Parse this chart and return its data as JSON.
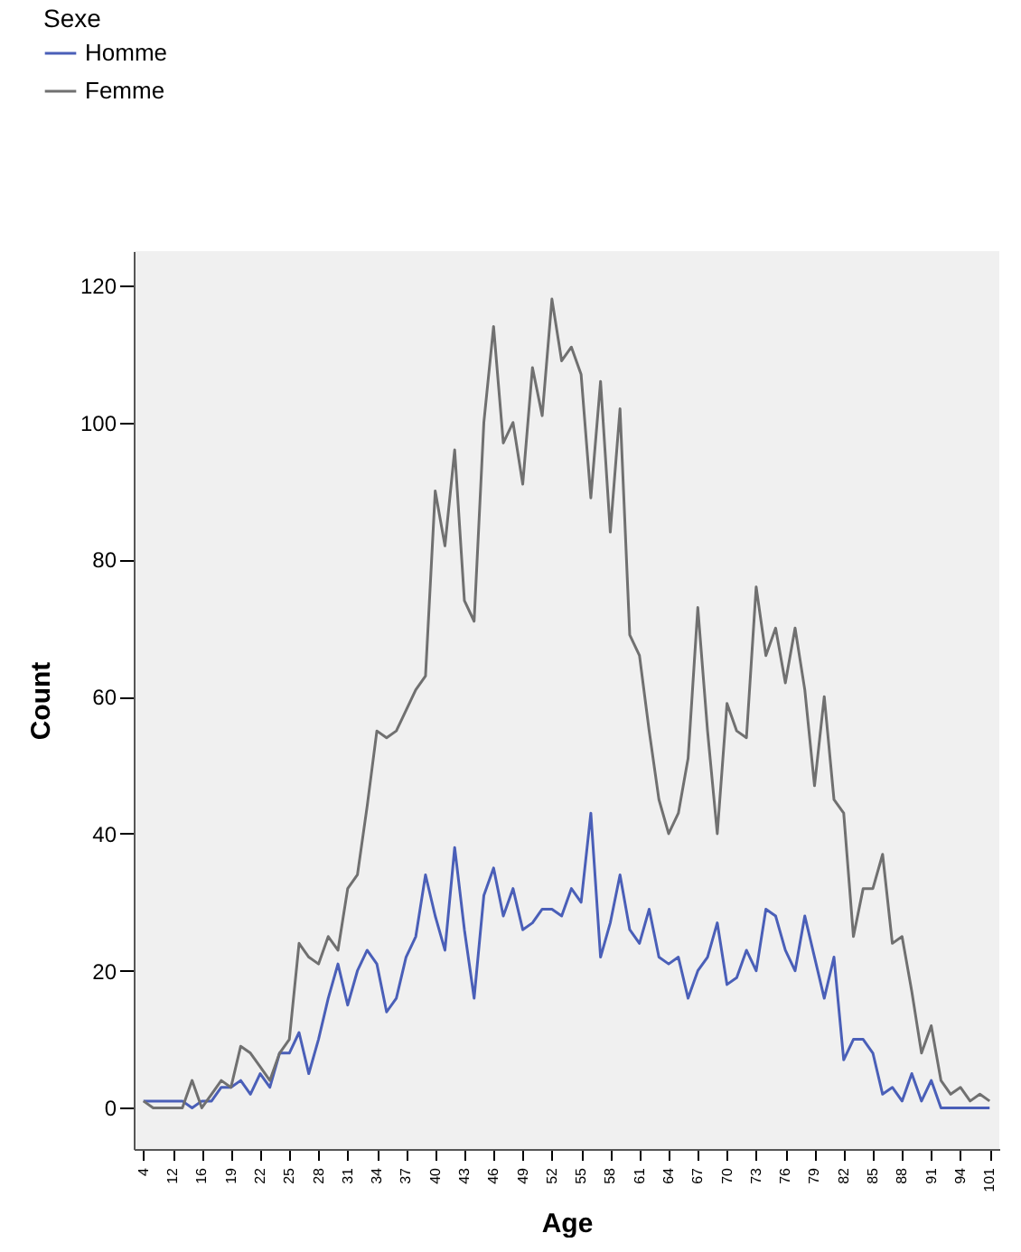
{
  "chart_data": {
    "type": "line",
    "xlabel": "Age",
    "ylabel": "Count",
    "legend_title": "Sexe",
    "legend": "top left",
    "grid": false,
    "categories": [
      "4",
      null,
      null,
      "12",
      null,
      null,
      "16",
      null,
      null,
      "19",
      null,
      null,
      "22",
      null,
      null,
      "25",
      null,
      null,
      "28",
      null,
      null,
      "31",
      null,
      null,
      "34",
      null,
      null,
      "37",
      null,
      null,
      "40",
      null,
      null,
      "43",
      null,
      null,
      "46",
      null,
      null,
      "49",
      null,
      null,
      "52",
      null,
      null,
      "55",
      null,
      null,
      "58",
      null,
      null,
      "61",
      null,
      null,
      "64",
      null,
      null,
      "67",
      null,
      null,
      "70",
      null,
      null,
      "73",
      null,
      null,
      "76",
      null,
      null,
      "79",
      null,
      null,
      "82",
      null,
      null,
      "85",
      null,
      null,
      "88",
      null,
      null,
      "91",
      null,
      null,
      "94",
      null,
      null,
      "101"
    ],
    "ylim": [
      -6,
      125
    ],
    "yticks": [
      0,
      20,
      40,
      60,
      80,
      100,
      120
    ],
    "series": [
      {
        "name": "Homme",
        "color": "#4a5fb8",
        "values": [
          1,
          1,
          1,
          1,
          1,
          0,
          1,
          1,
          3,
          3,
          4,
          2,
          5,
          3,
          8,
          8,
          11,
          5,
          10,
          16,
          21,
          15,
          20,
          23,
          21,
          14,
          16,
          22,
          25,
          34,
          28,
          23,
          38,
          26,
          16,
          31,
          35,
          28,
          32,
          26,
          27,
          29,
          29,
          28,
          32,
          30,
          43,
          22,
          27,
          34,
          26,
          24,
          29,
          22,
          21,
          22,
          16,
          20,
          22,
          27,
          18,
          19,
          23,
          20,
          29,
          28,
          23,
          20,
          28,
          22,
          16,
          22,
          7,
          10,
          10,
          8,
          2,
          3,
          1,
          5,
          1,
          4,
          0,
          0,
          0,
          0,
          0,
          0
        ]
      },
      {
        "name": "Femme",
        "color": "#707070",
        "values": [
          1,
          0,
          0,
          0,
          0,
          4,
          0,
          2,
          4,
          3,
          9,
          8,
          6,
          4,
          8,
          10,
          24,
          22,
          21,
          25,
          23,
          32,
          34,
          44,
          55,
          54,
          55,
          58,
          61,
          63,
          90,
          82,
          96,
          74,
          71,
          100,
          114,
          97,
          100,
          91,
          108,
          101,
          118,
          109,
          111,
          107,
          89,
          106,
          84,
          102,
          69,
          66,
          55,
          45,
          40,
          43,
          51,
          73,
          55,
          40,
          59,
          55,
          54,
          76,
          66,
          70,
          62,
          70,
          61,
          47,
          60,
          45,
          43,
          25,
          32,
          32,
          37,
          24,
          25,
          17,
          8,
          12,
          4,
          2,
          3,
          1,
          2,
          1
        ]
      }
    ]
  }
}
